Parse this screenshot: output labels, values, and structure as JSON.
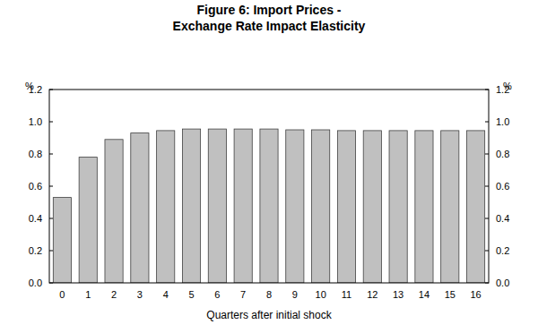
{
  "chart_data": {
    "type": "bar",
    "title": "Figure 6: Import Prices -",
    "subtitle": "Exchange Rate Impact Elasticity",
    "x_label": "Quarters after initial shock",
    "y_label": "%",
    "categories": [
      "0",
      "1",
      "2",
      "3",
      "4",
      "5",
      "6",
      "7",
      "8",
      "9",
      "10",
      "11",
      "12",
      "13",
      "14",
      "15",
      "16"
    ],
    "values": [
      0.53,
      0.78,
      0.89,
      0.93,
      0.945,
      0.955,
      0.955,
      0.955,
      0.955,
      0.95,
      0.95,
      0.945,
      0.945,
      0.945,
      0.945,
      0.945,
      0.945
    ],
    "color": "#c0c0c0",
    "ylim": [
      0,
      1.2
    ],
    "yticks": [
      {
        "value": 0,
        "label": "0.0"
      },
      0.2,
      0.4,
      0.6,
      0.8,
      {
        "value": 1,
        "label": "1.0"
      },
      1.2
    ],
    "grid": false
  }
}
